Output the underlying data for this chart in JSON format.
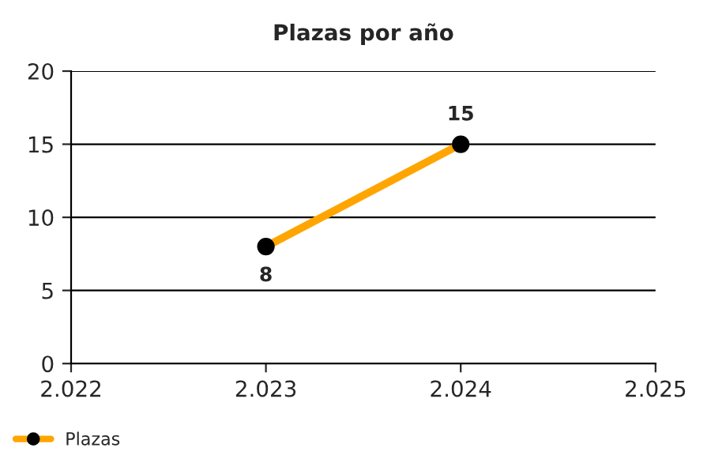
{
  "chart_data": {
    "type": "line",
    "title": "Plazas por año",
    "x": [
      2023,
      2024
    ],
    "series": [
      {
        "name": "Plazas",
        "color": "#ffa500",
        "values": [
          8,
          15
        ],
        "value_labels": [
          "8",
          "15"
        ]
      }
    ],
    "xlim": [
      2022,
      2025
    ],
    "xticks": [
      {
        "value": 2022,
        "label": "2.022"
      },
      {
        "value": 2023,
        "label": "2.023"
      },
      {
        "value": 2024,
        "label": "2.024"
      },
      {
        "value": 2025,
        "label": "2.025"
      }
    ],
    "ylim": [
      0,
      20
    ],
    "yticks": [
      0,
      5,
      10,
      15,
      20
    ],
    "grid": "y",
    "legend": "bottom left",
    "marker": "circle",
    "line_style": "solid"
  }
}
